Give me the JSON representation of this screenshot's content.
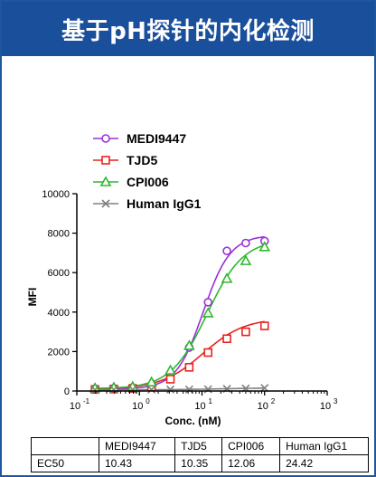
{
  "header": {
    "title": "基于pH探针的内化检测"
  },
  "chart_data": {
    "type": "line",
    "xscale": "log",
    "xlim": [
      0.1,
      1000
    ],
    "ylim": [
      0,
      10000
    ],
    "xlabel": "Conc. (nM)",
    "ylabel": "MFI",
    "x_ticks": [
      0.1,
      1,
      10,
      100,
      1000
    ],
    "x_tick_labels": [
      {
        "base": "10",
        "exp": "-1"
      },
      {
        "base": "10",
        "exp": "0"
      },
      {
        "base": "10",
        "exp": "1"
      },
      {
        "base": "10",
        "exp": "2"
      },
      {
        "base": "10",
        "exp": "3"
      }
    ],
    "y_ticks": [
      0,
      2000,
      4000,
      6000,
      8000,
      10000
    ],
    "y_tick_labels": [
      "0",
      "2000",
      "4000",
      "6000",
      "8000",
      "10000"
    ],
    "legend_position": "top-left",
    "series": [
      {
        "name": "MEDI9447",
        "color": "#9b30d9",
        "marker": "circle",
        "x": [
          0.195,
          0.39,
          0.78,
          1.56,
          3.125,
          6.25,
          12.5,
          25,
          50,
          100
        ],
        "y": [
          120,
          140,
          170,
          300,
          800,
          2200,
          4500,
          7100,
          7500,
          7600
        ],
        "fit": {
          "bottom": 100,
          "top": 7900,
          "ec50": 10.43,
          "hill": 2.0
        }
      },
      {
        "name": "TJD5",
        "color": "#e8231f",
        "marker": "square",
        "x": [
          0.195,
          0.39,
          0.78,
          1.56,
          3.125,
          6.25,
          12.5,
          25,
          50,
          100
        ],
        "y": [
          80,
          100,
          130,
          200,
          600,
          1200,
          1950,
          2650,
          3000,
          3300
        ],
        "fit": {
          "bottom": 100,
          "top": 3700,
          "ec50": 10.35,
          "hill": 1.3
        }
      },
      {
        "name": "CPI006",
        "color": "#2db82d",
        "marker": "triangle",
        "x": [
          0.195,
          0.39,
          0.78,
          1.56,
          3.125,
          6.25,
          12.5,
          25,
          50,
          100
        ],
        "y": [
          150,
          180,
          220,
          450,
          1050,
          2300,
          3950,
          5700,
          6600,
          7300
        ],
        "fit": {
          "bottom": 120,
          "top": 7700,
          "ec50": 12.06,
          "hill": 1.5
        }
      },
      {
        "name": "Human IgG1",
        "color": "#808080",
        "marker": "x",
        "x": [
          0.195,
          0.39,
          0.78,
          1.56,
          3.125,
          6.25,
          12.5,
          25,
          50,
          100
        ],
        "y": [
          60,
          70,
          70,
          70,
          80,
          80,
          90,
          110,
          130,
          150
        ],
        "fit": {
          "bottom": 60,
          "top": 170,
          "ec50": 24.42,
          "hill": 1.0
        }
      }
    ]
  },
  "ec50_table": {
    "header": [
      "",
      "MEDI9447",
      "TJD5",
      "CPI006",
      "Human IgG1"
    ],
    "rows": [
      [
        "EC50",
        "10.43",
        "10.35",
        "12.06",
        "24.42"
      ]
    ]
  }
}
